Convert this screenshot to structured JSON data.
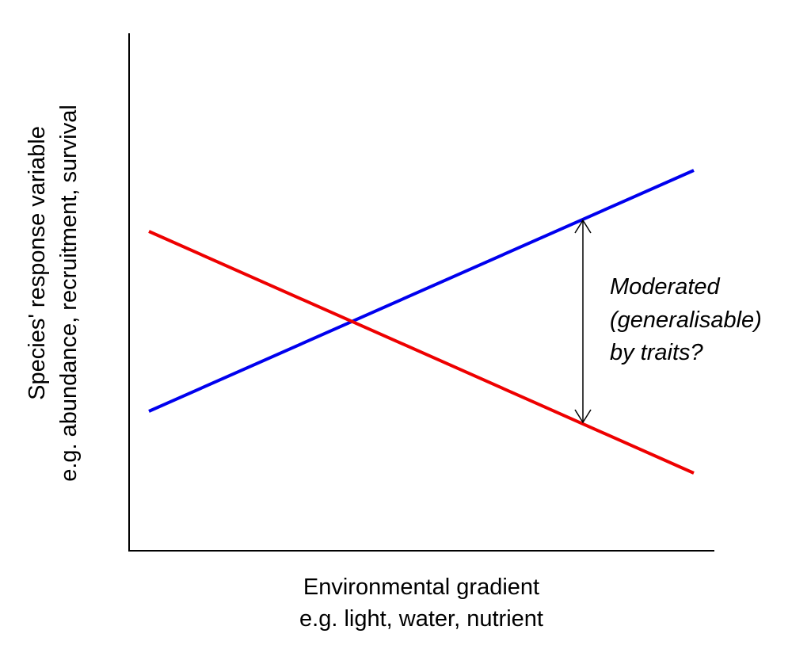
{
  "x_axis": {
    "label_line1": "Environmental gradient",
    "label_line2": "e.g. light, water, nutrient"
  },
  "y_axis": {
    "label_line1": "Species' response variable",
    "label_line2": "e.g. abundance, recruitment, survival"
  },
  "annotation": {
    "line1": "Moderated",
    "line2": "(generalisable)",
    "line3": "by traits?"
  },
  "colors": {
    "increasing_line": "#0000ee",
    "decreasing_line": "#ee0000",
    "axis": "#000000"
  }
}
